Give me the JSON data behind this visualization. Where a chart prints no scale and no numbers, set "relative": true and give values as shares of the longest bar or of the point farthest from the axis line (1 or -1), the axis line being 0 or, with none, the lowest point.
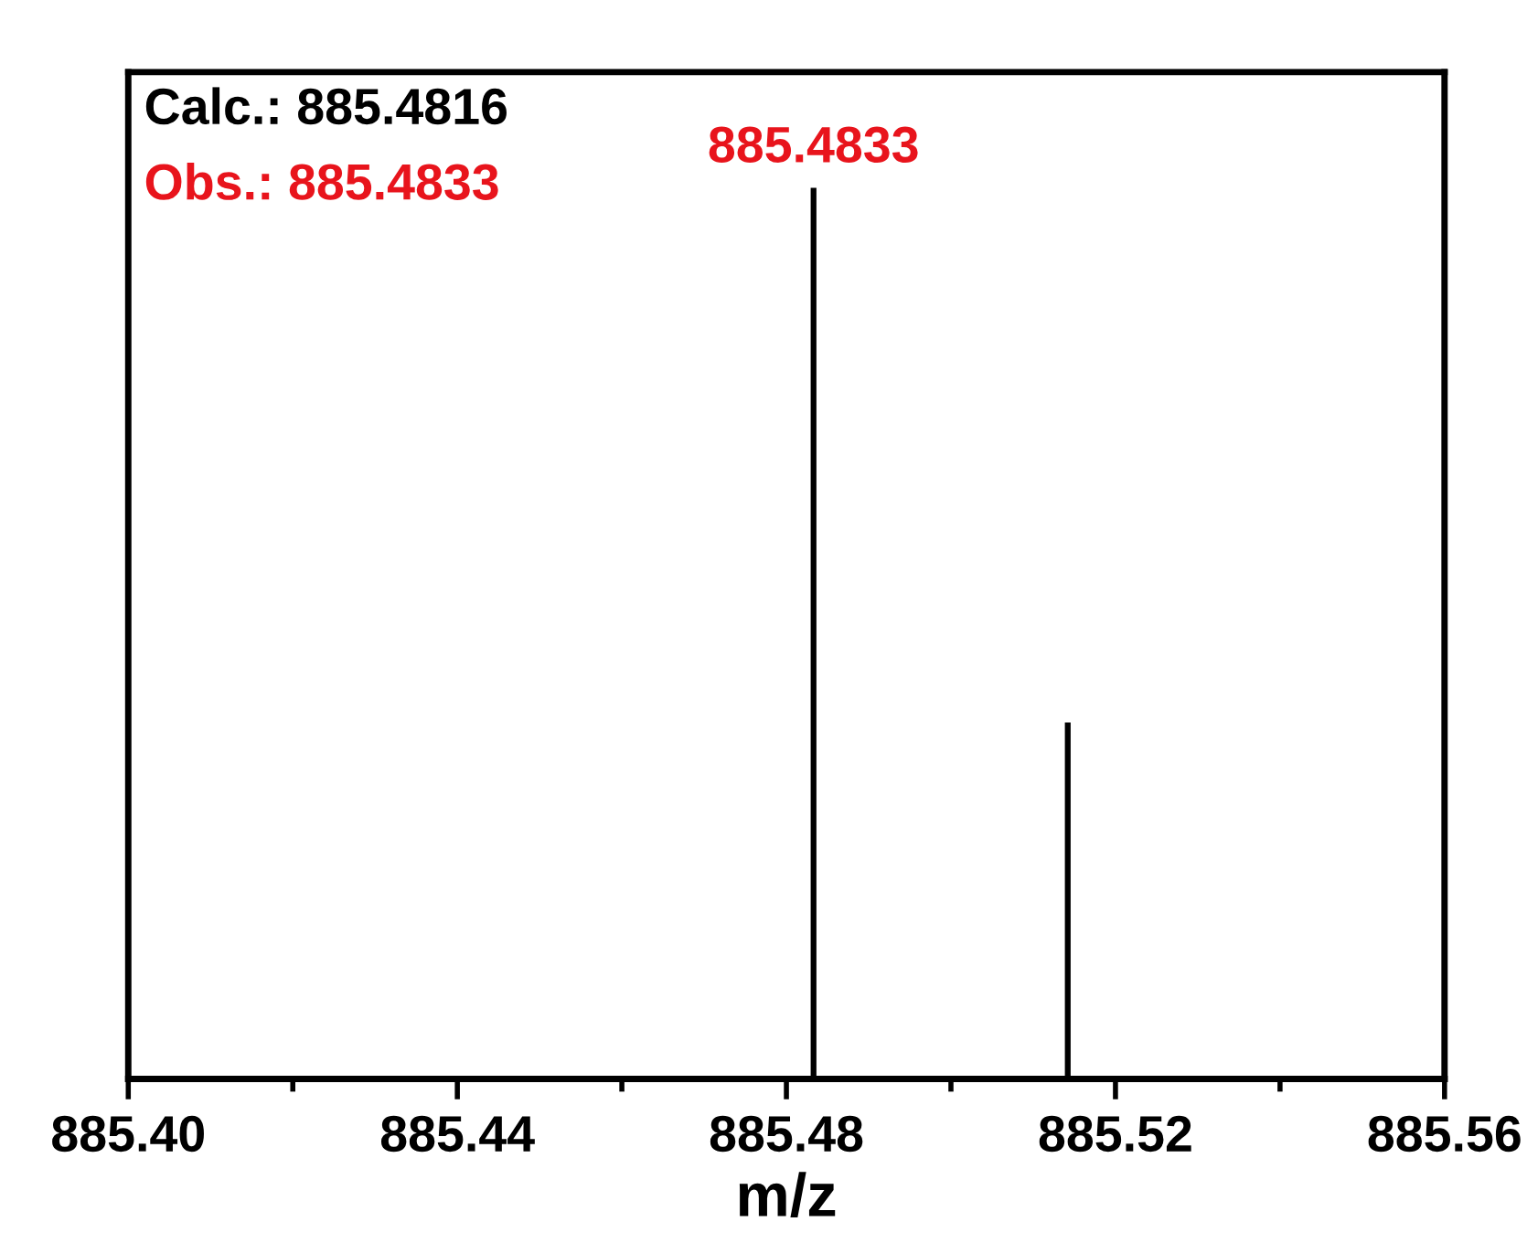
{
  "chart_data": {
    "type": "bar",
    "xlabel": "m/z",
    "relative": true,
    "x": [
      885.4833,
      885.5142
    ],
    "values": [
      1,
      0.4
    ],
    "color": "#000000",
    "xlim": [
      885.4,
      885.56
    ],
    "xticks": [
      {
        "value": 885.4,
        "label": "885.40"
      },
      {
        "value": 885.42,
        "label": null
      },
      {
        "value": 885.44,
        "label": "885.44"
      },
      {
        "value": 885.46,
        "label": null
      },
      {
        "value": 885.48,
        "label": "885.48"
      },
      {
        "value": 885.5,
        "label": null
      },
      {
        "value": 885.52,
        "label": "885.52"
      },
      {
        "value": 885.54,
        "label": null
      },
      {
        "value": 885.56,
        "label": "885.56"
      }
    ],
    "annotations": [
      "Calc.: 885.4816",
      "Obs.: 885.4833",
      {
        "text": "885.4833",
        "x": 885.4833,
        "y": 1
      }
    ],
    "grid": false,
    "legend": false
  }
}
